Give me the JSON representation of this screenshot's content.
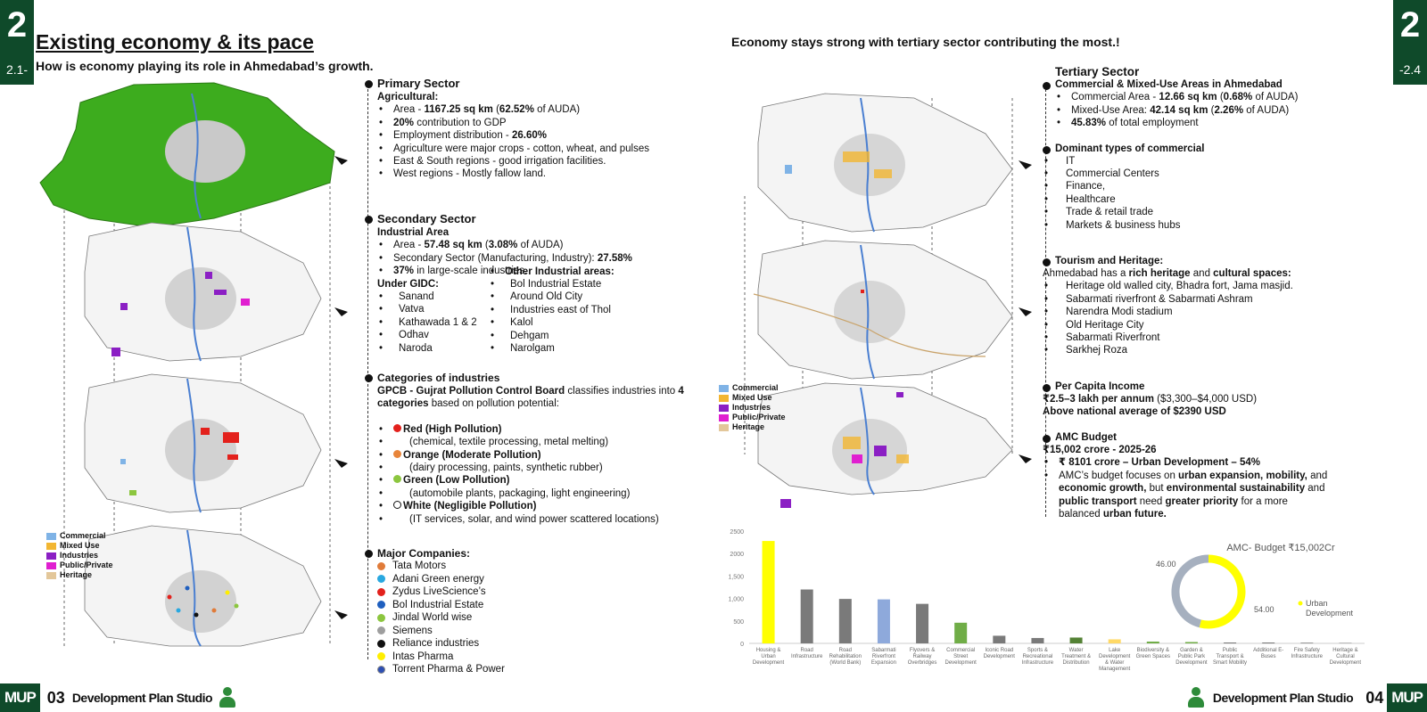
{
  "left_tab": {
    "num": "2",
    "sub": "2.1-"
  },
  "right_tab": {
    "num": "2",
    "sub": "-2.4"
  },
  "title": "Existing economy & its pace",
  "subtitle": "How is economy playing its role in Ahmedabad’s growth.",
  "right_title": "Economy stays strong with tertiary sector contributing the most.!",
  "primary": {
    "heading": "Primary Sector",
    "sub": "Agricultural:",
    "items": [
      {
        "pre": "Area - ",
        "bold": "1167.25 sq km",
        "mid": "  (",
        "bold2": "62.52%",
        "post": " of AUDA)"
      },
      {
        "pre": "",
        "bold": "20%",
        "mid": " contribution to GDP",
        "bold2": "",
        "post": ""
      },
      {
        "pre": "Employment distribution - ",
        "bold": "26.60%",
        "mid": "",
        "bold2": "",
        "post": ""
      },
      {
        "pre": "Agriculture were major crops - cotton, wheat, and pulses",
        "bold": "",
        "mid": "",
        "bold2": "",
        "post": ""
      },
      {
        "pre": "East & South regions - good irrigation facilities.",
        "bold": "",
        "mid": "",
        "bold2": "",
        "post": ""
      },
      {
        "pre": "West regions - Mostly fallow land.",
        "bold": "",
        "mid": "",
        "bold2": "",
        "post": ""
      }
    ]
  },
  "secondary": {
    "heading": "Secondary Sector",
    "sub": "Industrial Area",
    "items": [
      {
        "pre": "Area - ",
        "bold": "57.48 sq km",
        "mid": " (",
        "bold2": "3.08%",
        "post": " of AUDA)"
      },
      {
        "pre": "Secondary Sector (Manufacturing, Industry): ",
        "bold": "27.58%",
        "mid": "",
        "bold2": "",
        "post": ""
      },
      {
        "pre": "",
        "bold": "37%",
        "mid": " in large-scale industries.",
        "bold2": "",
        "post": ""
      }
    ],
    "gidc_heading": "Under GIDC:",
    "gidc": [
      "Sanand",
      "Vatva",
      "Kathawada 1 & 2",
      "Odhav",
      "Naroda"
    ],
    "other_heading": "Other Industrial areas:",
    "other": [
      "Bol Industrial Estate",
      "Around Old City",
      "Industries east of Thol",
      "Kalol",
      "Dehgam",
      "Narolgam"
    ]
  },
  "categories": {
    "heading": "Categories of industries",
    "intro_bold": "GPCB - Gujrat Pollution Control Board",
    "intro_mid": " classifies industries into ",
    "intro_bold2": "4 categories",
    "intro_post": " based on pollution potential:",
    "items": [
      {
        "label": "Red (High Pollution)",
        "desc": "(chemical, textile processing, metal melting)",
        "color": "#e3211c"
      },
      {
        "label": "Orange (Moderate Pollution)",
        "desc": "(dairy processing, paints, synthetic rubber)",
        "color": "#e8853a"
      },
      {
        "label": "Green (Low Pollution)",
        "desc": "(automobile plants, packaging, light engineering)",
        "color": "#8cc63f"
      },
      {
        "label": "White (Negligible Pollution)",
        "desc": "(IT services, solar, and wind power scattered locations)",
        "color": "#ffffff"
      }
    ]
  },
  "companies": {
    "heading": "Major Companies:",
    "items": [
      {
        "name": "Tata Motors",
        "color": "#e07b39"
      },
      {
        "name": "Adani Green energy",
        "color": "#29a8e0"
      },
      {
        "name": "Zydus LiveScience’s",
        "color": "#e3211c"
      },
      {
        "name": "Bol Industrial Estate",
        "color": "#1f5fbf"
      },
      {
        "name": "Jindal World wise",
        "color": "#8cc63f"
      },
      {
        "name": "Siemens",
        "color": "#9e9e9e"
      },
      {
        "name": "Reliance industries",
        "color": "#111111"
      },
      {
        "name": "Intas Pharma",
        "color": "#ffee00"
      },
      {
        "name": "Torrent Pharma & Power",
        "color": "#2d4fb3"
      }
    ]
  },
  "legend": [
    {
      "label": "Commercial",
      "color": "#7fb3e6"
    },
    {
      "label": "Mixed Use",
      "color": "#f2b632"
    },
    {
      "label": "Industries",
      "color": "#8b1fc4"
    },
    {
      "label": "Public/Private",
      "color": "#e01fd0"
    },
    {
      "label": "Heritage",
      "color": "#e3c79a"
    }
  ],
  "tertiary": {
    "heading": "Tertiary Sector",
    "sub_heading": "Commercial & Mixed-Use Areas in Ahmedabad",
    "items": [
      {
        "pre": "Commercial Area - ",
        "bold": "12.66 sq km",
        "mid": "  (",
        "bold2": "0.68%",
        "post": " of AUDA)"
      },
      {
        "pre": "Mixed-Use Area: ",
        "bold": "42.14 sq km",
        "mid": "  (",
        "bold2": "2.26%",
        "post": " of AUDA)"
      },
      {
        "pre": "",
        "bold": "45.83%",
        "mid": " of total employment",
        "bold2": "",
        "post": ""
      }
    ],
    "dominant_heading": "Dominant types of commercial",
    "dominant": [
      "IT",
      "Commercial Centers",
      "Finance,",
      "Healthcare",
      "Trade & retail trade",
      "Markets & business hubs"
    ]
  },
  "tourism": {
    "heading": "Tourism and Heritage:",
    "intro_pre": "Ahmedabad has a ",
    "intro_b1": "rich heritage",
    "intro_mid": " and ",
    "intro_b2": "cultural spaces:",
    "items": [
      "Heritage old walled city, Bhadra fort, Jama masjid.",
      "Sabarmati riverfront & Sabarmati Ashram",
      "Narendra Modi stadium",
      "Old Heritage City",
      "Sabarmati Riverfront",
      "Sarkhej Roza"
    ]
  },
  "income": {
    "heading": "Per Capita Income",
    "line1_bold": "₹2.5–3 lakh per annum",
    "line1_post": " ($3,300–$4,000 USD)",
    "line2": "Above national average of $2390 USD"
  },
  "budget": {
    "heading": "AMC Budget",
    "line1": "₹15,002 crore  - 2025-26",
    "item1": "₹ 8101 crore – Urban Development – 54%",
    "item2_pre": "AMC’s budget focuses on ",
    "item2_b1": "urban expansion, mobility,",
    "item2_mid1": " and ",
    "item2_b2": "economic growth,",
    "item2_mid2": " but ",
    "item2_b3": "environmental sustainability",
    "item2_mid3": " and ",
    "item2_b4": "public transport",
    "item2_mid4": " need ",
    "item2_b5": "greater priority",
    "item2_mid5": " for a more balanced ",
    "item2_b6": "urban future."
  },
  "chart_data": [
    {
      "type": "bar",
      "categories": [
        [
          "Housing &",
          "Urban",
          "Development"
        ],
        [
          "Road",
          "Infrastructure"
        ],
        [
          "Road",
          "Rehabilitation",
          "(World Bank)"
        ],
        [
          "Sabarmati",
          "Riverfront",
          "Expansion"
        ],
        [
          "Flyovers &",
          "Railway",
          "Overbridges"
        ],
        [
          "Commercial",
          "Street",
          "Development"
        ],
        [
          "Iconic Road",
          "Development"
        ],
        [
          "Sports &",
          "Recreational",
          "Infrastructure"
        ],
        [
          "Water",
          "Treatment &",
          "Distribution"
        ],
        [
          "Lake",
          "Development",
          "& Water",
          "Management"
        ],
        [
          "Biodiversity &",
          "Green Spaces"
        ],
        [
          "Garden &",
          "Public Park",
          "Development"
        ],
        [
          "Public",
          "Transport &",
          "Smart Mobility"
        ],
        [
          "Additional E-",
          "Buses"
        ],
        [
          "Fire Safety",
          "Infrastructure"
        ],
        [
          "Heritage &",
          "Cultural",
          "Development"
        ]
      ],
      "values": [
        2280,
        1200,
        990,
        980,
        880,
        460,
        170,
        120,
        130,
        90,
        40,
        30,
        20,
        20,
        15,
        10
      ],
      "colors": [
        "#ffff00",
        "#7a7a7a",
        "#7a7a7a",
        "#8ea9db",
        "#7a7a7a",
        "#70ad47",
        "#7a7a7a",
        "#7a7a7a",
        "#548235",
        "#ffd966",
        "#70ad47",
        "#70ad47",
        "#7a7a7a",
        "#7a7a7a",
        "#7a7a7a",
        "#7a7a7a"
      ],
      "yticks": [
        "2500",
        "2000",
        "1,500",
        "1,000",
        "500",
        "0"
      ],
      "ylim": [
        0,
        2500
      ]
    },
    {
      "type": "pie",
      "title": "AMC- Budget  ₹15,002Cr",
      "slices": [
        {
          "value": 54.0,
          "label": "54.00",
          "color": "#ffff00",
          "name": "Urban Development"
        },
        {
          "value": 46.0,
          "label": "46.00",
          "color": "#a6b0bf"
        }
      ],
      "legend_label": "Urban Development"
    }
  ],
  "footer": {
    "mup": "MUP",
    "left_page": "03",
    "right_page": "04",
    "studio": "Development Plan Studio"
  }
}
